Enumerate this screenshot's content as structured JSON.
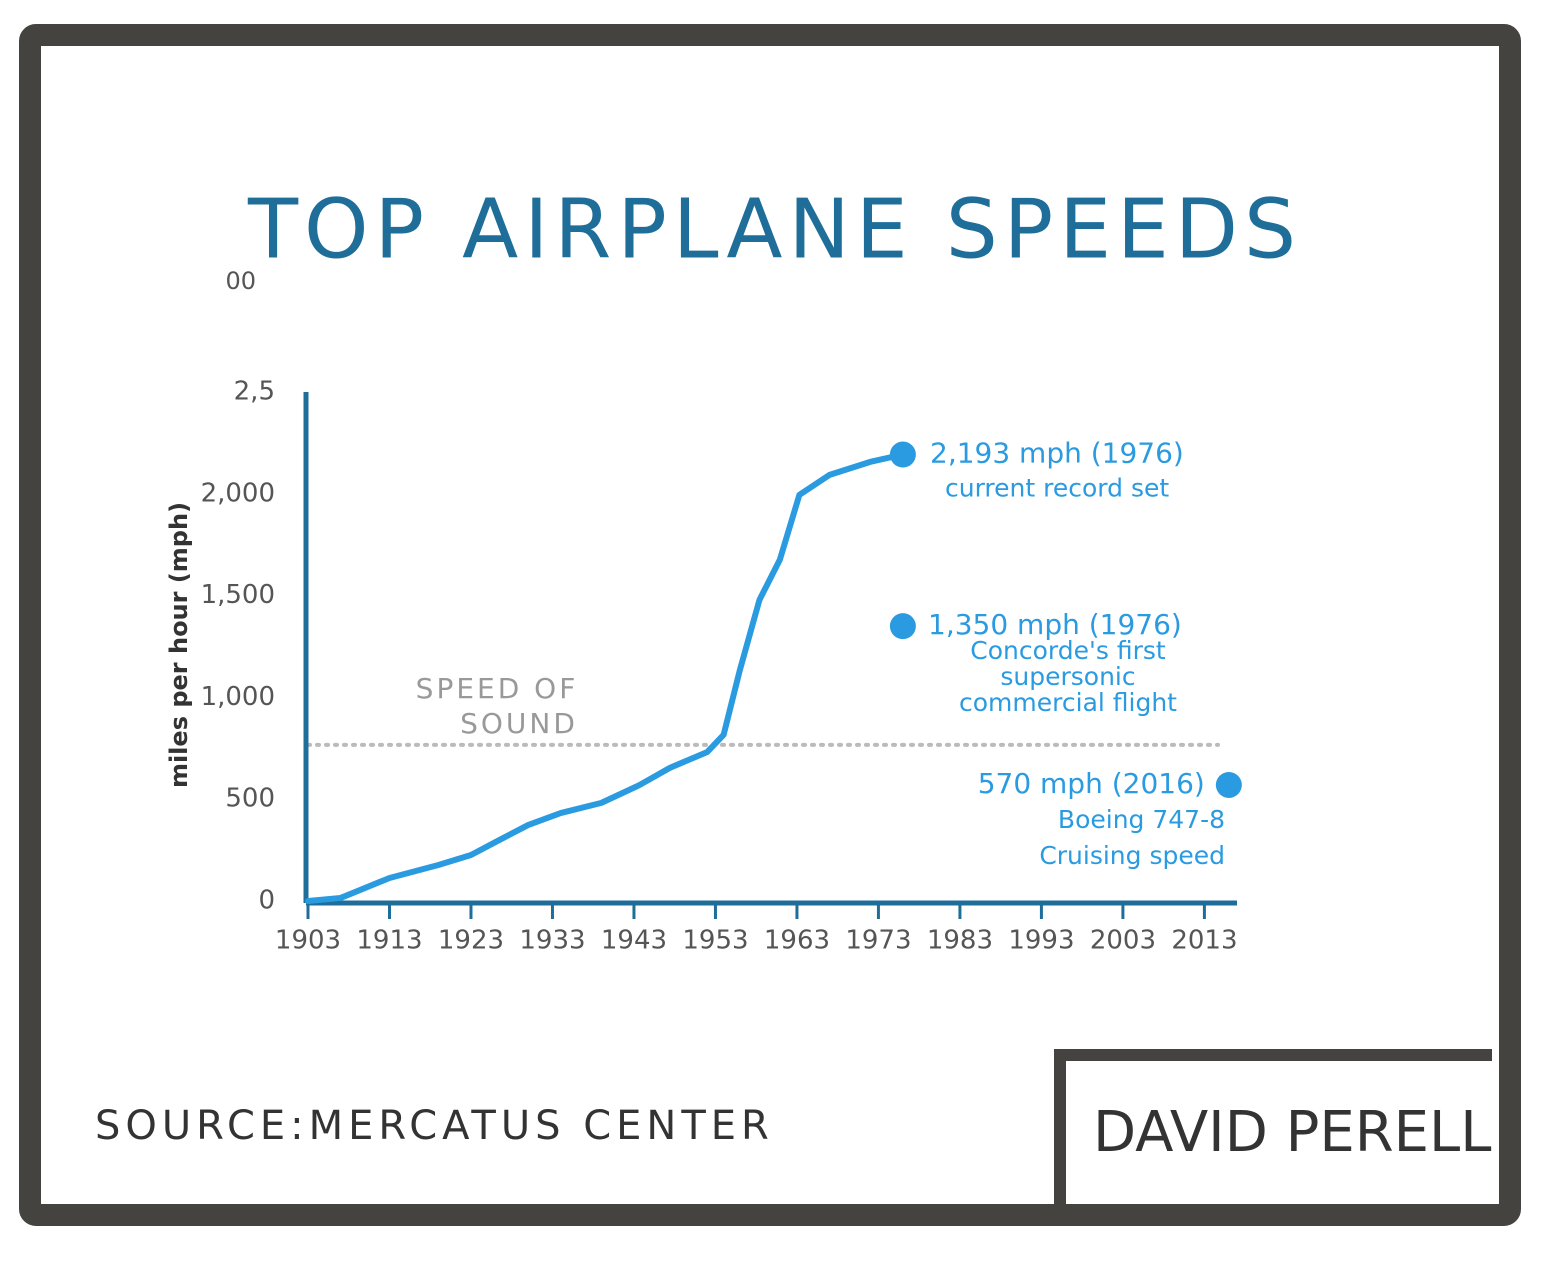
{
  "chart_data": {
    "type": "line",
    "title": "TOP AIRPLANE SPEEDS",
    "y_label": "miles per hour (mph)",
    "x": [
      1903,
      1907,
      1913,
      1919,
      1923,
      1926.5,
      1930,
      1934,
      1939,
      1943.7,
      1947.4,
      1952,
      1954,
      1956,
      1958.4,
      1960.9,
      1963.3,
      1967,
      1972,
      1976
    ],
    "series": [
      {
        "color": "#2a9be0",
        "values": [
          0,
          15,
          113,
          177,
          226,
          300,
          373,
          432,
          482,
          570,
          654,
          732,
          816,
          1135,
          1479,
          1676,
          1995,
          2093,
          2157,
          2193
        ]
      }
    ],
    "xlim": [
      1903,
      2017
    ],
    "ylim": [
      0,
      2500
    ],
    "xticks": [
      1903,
      1913,
      1923,
      1933,
      1943,
      1953,
      1963,
      1973,
      1983,
      1993,
      2003,
      2013
    ],
    "yticks": [
      0,
      500,
      {
        "value": 1000,
        "label": "1,000"
      },
      {
        "value": 1500,
        "label": "1,500"
      },
      {
        "value": 2000,
        "label": "2,000"
      },
      {
        "value": 2500,
        "label": "2,5"
      }
    ],
    "stray_tick_label": "00",
    "reference_line": {
      "value": 767,
      "label": [
        "SPEED OF",
        "SOUND"
      ]
    },
    "highlights": [
      {
        "x": 1976,
        "value": 2193,
        "label": [
          "2,193 mph (1976)",
          "current record set"
        ]
      },
      {
        "x": 1976,
        "value": 1350,
        "label": [
          "1,350 mph (1976)",
          "Concorde's first",
          "supersonic",
          "commercial flight"
        ]
      },
      {
        "x": 2016,
        "value": 570,
        "label": [
          "570 mph (2016)",
          "Boeing 747-8",
          "Cruising speed"
        ]
      }
    ],
    "source": "SOURCE:MERCATUS CENTER",
    "author": "DAVID PERELL"
  }
}
